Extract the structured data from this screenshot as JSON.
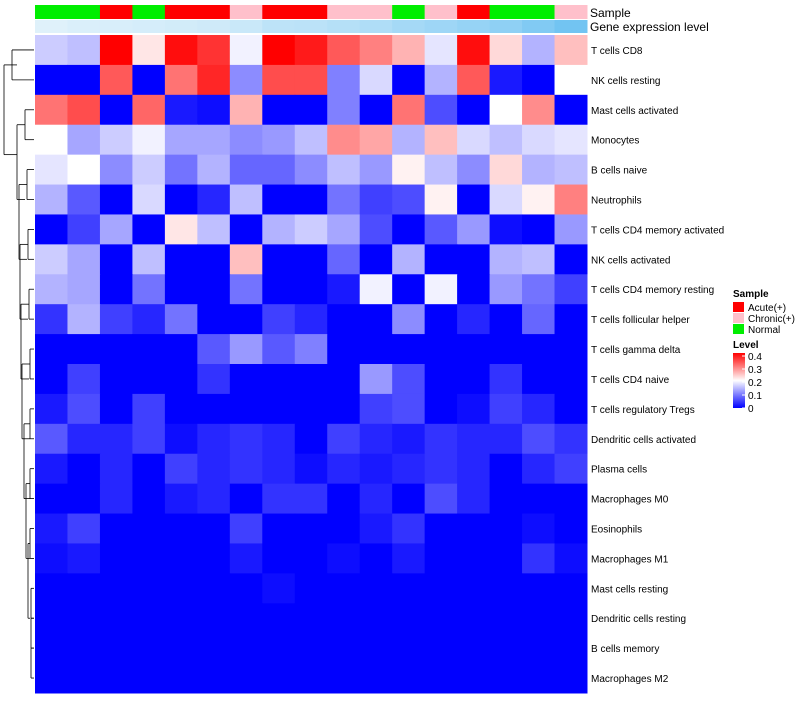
{
  "chart_data": {
    "type": "heatmap",
    "title": "",
    "annotation_labels": {
      "sample": "Sample",
      "expression": "Gene expression level"
    },
    "rows": [
      "T cells CD8",
      "NK cells resting",
      "Mast cells activated",
      "Monocytes",
      "B cells naive",
      "Neutrophils",
      "T cells CD4 memory activated",
      "NK cells activated",
      "T cells CD4 memory resting",
      "T cells follicular helper",
      "T cells gamma delta",
      "T cells CD4 naive",
      "T cells regulatory  Tregs",
      "Dendritic cells activated",
      "Plasma cells",
      "Macrophages M0",
      "Eosinophils",
      "Macrophages M1",
      "Mast cells resting",
      "Dendritic cells resting",
      "B cells memory",
      "Macrophages M2"
    ],
    "sample_groups": [
      "Normal",
      "Normal",
      "Acute(+)",
      "Normal",
      "Acute(+)",
      "Acute(+)",
      "Chronic(+)",
      "Acute(+)",
      "Acute(+)",
      "Chronic(+)",
      "Chronic(+)",
      "Normal",
      "Chronic(+)",
      "Acute(+)",
      "Normal",
      "Normal",
      "Chronic(+)"
    ],
    "expression_levels": [
      0.95,
      0.92,
      0.9,
      0.88,
      0.86,
      0.84,
      0.8,
      0.72,
      0.7,
      0.66,
      0.62,
      0.55,
      0.5,
      0.45,
      0.4,
      0.3,
      0.2
    ],
    "values": [
      [
        0.16,
        0.15,
        0.4,
        0.22,
        0.39,
        0.36,
        0.19,
        0.4,
        0.38,
        0.33,
        0.3,
        0.26,
        0.18,
        0.39,
        0.23,
        0.14,
        0.25
      ],
      [
        0.0,
        0.0,
        0.33,
        0.0,
        0.31,
        0.37,
        0.11,
        0.34,
        0.34,
        0.1,
        0.17,
        0.0,
        0.14,
        0.33,
        0.02,
        0.0,
        0.2
      ],
      [
        0.31,
        0.34,
        0.0,
        0.32,
        0.02,
        0.01,
        0.26,
        0.0,
        0.0,
        0.1,
        0.0,
        0.31,
        0.06,
        0.0,
        0.2,
        0.29,
        0.0
      ],
      [
        0.2,
        0.13,
        0.16,
        0.19,
        0.13,
        0.13,
        0.11,
        0.12,
        0.15,
        0.29,
        0.27,
        0.14,
        0.25,
        0.17,
        0.15,
        0.17,
        0.18
      ],
      [
        0.18,
        0.2,
        0.11,
        0.16,
        0.09,
        0.14,
        0.08,
        0.08,
        0.11,
        0.15,
        0.12,
        0.21,
        0.15,
        0.11,
        0.23,
        0.14,
        0.15
      ],
      [
        0.14,
        0.07,
        0.0,
        0.17,
        0.0,
        0.03,
        0.15,
        0.0,
        0.0,
        0.09,
        0.05,
        0.06,
        0.21,
        0.0,
        0.17,
        0.21,
        0.3
      ],
      [
        0.0,
        0.05,
        0.13,
        0.0,
        0.22,
        0.15,
        0.0,
        0.14,
        0.16,
        0.13,
        0.06,
        0.0,
        0.07,
        0.12,
        0.01,
        0.0,
        0.12
      ],
      [
        0.16,
        0.13,
        0.0,
        0.15,
        0.0,
        0.0,
        0.25,
        0.0,
        0.0,
        0.08,
        0.0,
        0.14,
        0.0,
        0.0,
        0.14,
        0.15,
        0.0
      ],
      [
        0.14,
        0.13,
        0.0,
        0.09,
        0.0,
        0.0,
        0.09,
        0.0,
        0.0,
        0.02,
        0.19,
        0.0,
        0.19,
        0.0,
        0.12,
        0.09,
        0.05
      ],
      [
        0.04,
        0.14,
        0.05,
        0.03,
        0.09,
        0.0,
        0.0,
        0.05,
        0.03,
        0.0,
        0.0,
        0.11,
        0.0,
        0.03,
        0.0,
        0.08,
        0.0
      ],
      [
        0.0,
        0.0,
        0.0,
        0.0,
        0.0,
        0.07,
        0.12,
        0.07,
        0.1,
        0.0,
        0.0,
        0.0,
        0.0,
        0.0,
        0.0,
        0.0,
        0.0
      ],
      [
        0.0,
        0.05,
        0.0,
        0.0,
        0.0,
        0.04,
        0.0,
        0.0,
        0.0,
        0.0,
        0.12,
        0.06,
        0.0,
        0.0,
        0.04,
        0.0,
        0.0
      ],
      [
        0.02,
        0.06,
        0.0,
        0.05,
        0.0,
        0.0,
        0.0,
        0.0,
        0.0,
        0.0,
        0.05,
        0.06,
        0.0,
        0.01,
        0.05,
        0.03,
        0.0
      ],
      [
        0.07,
        0.03,
        0.03,
        0.05,
        0.01,
        0.03,
        0.04,
        0.03,
        0.0,
        0.05,
        0.03,
        0.02,
        0.04,
        0.03,
        0.03,
        0.06,
        0.04
      ],
      [
        0.02,
        0.0,
        0.03,
        0.0,
        0.05,
        0.03,
        0.04,
        0.03,
        0.01,
        0.03,
        0.02,
        0.03,
        0.04,
        0.03,
        0.0,
        0.03,
        0.05
      ],
      [
        0.0,
        0.0,
        0.03,
        0.0,
        0.02,
        0.03,
        0.0,
        0.04,
        0.04,
        0.0,
        0.03,
        0.0,
        0.06,
        0.03,
        0.0,
        0.0,
        0.0
      ],
      [
        0.02,
        0.05,
        0.0,
        0.0,
        0.0,
        0.0,
        0.05,
        0.0,
        0.0,
        0.0,
        0.02,
        0.04,
        0.0,
        0.0,
        0.0,
        0.01,
        0.0
      ],
      [
        0.01,
        0.02,
        0.0,
        0.0,
        0.0,
        0.0,
        0.02,
        0.0,
        0.0,
        0.01,
        0.0,
        0.02,
        0.0,
        0.0,
        0.0,
        0.04,
        0.01
      ],
      [
        0.0,
        0.0,
        0.0,
        0.0,
        0.0,
        0.0,
        0.0,
        0.01,
        0.0,
        0.0,
        0.0,
        0.0,
        0.0,
        0.0,
        0.0,
        0.0,
        0.0
      ],
      [
        0.0,
        0.0,
        0.0,
        0.0,
        0.0,
        0.0,
        0.0,
        0.0,
        0.0,
        0.0,
        0.0,
        0.0,
        0.0,
        0.0,
        0.0,
        0.0,
        0.0
      ],
      [
        0.0,
        0.0,
        0.0,
        0.0,
        0.0,
        0.0,
        0.0,
        0.0,
        0.0,
        0.0,
        0.0,
        0.0,
        0.0,
        0.0,
        0.0,
        0.0,
        0.0
      ],
      [
        0.0,
        0.0,
        0.0,
        0.0,
        0.0,
        0.0,
        0.0,
        0.0,
        0.0,
        0.0,
        0.0,
        0.0,
        0.0,
        0.0,
        0.0,
        0.0,
        0.0
      ]
    ],
    "value_range": [
      0,
      0.4
    ],
    "legend_sample": {
      "title": "Sample",
      "entries": [
        {
          "label": "Acute(+)",
          "color": "#ff0000"
        },
        {
          "label": "Chronic(+)",
          "color": "#ffc0cb"
        },
        {
          "label": "Normal",
          "color": "#00ee00"
        }
      ]
    },
    "legend_level": {
      "title": "Level",
      "ticks": [
        "0.4",
        "0.3",
        "0.2",
        "0.1",
        "0"
      ],
      "colors": {
        "low": "#0000ff",
        "mid": "#ffffff",
        "high": "#ff0000"
      }
    },
    "expression_colors": {
      "light": "#e6f4fb",
      "dark": "#55b8f0"
    }
  }
}
